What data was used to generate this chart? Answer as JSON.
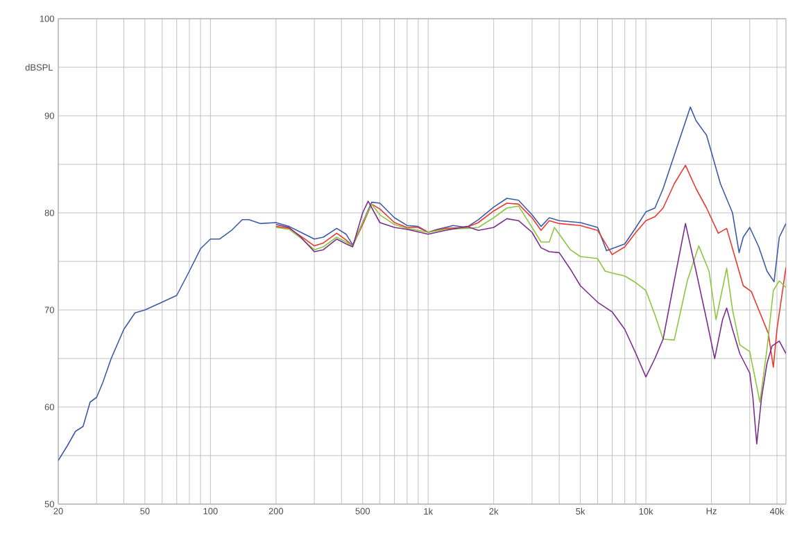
{
  "chart_data": {
    "type": "line",
    "ylabel": "dBSPL",
    "log": "x",
    "grid": true,
    "xlim": [
      20,
      44000
    ],
    "ylim": [
      50,
      100
    ],
    "xticks": [
      {
        "value": 20,
        "label": "20"
      },
      {
        "value": 30,
        "label": null
      },
      {
        "value": 40,
        "label": null
      },
      {
        "value": 50,
        "label": "50"
      },
      {
        "value": 60,
        "label": null
      },
      {
        "value": 70,
        "label": null
      },
      {
        "value": 80,
        "label": null
      },
      {
        "value": 90,
        "label": null
      },
      {
        "value": 100,
        "label": "100"
      },
      {
        "value": 200,
        "label": "200"
      },
      {
        "value": 300,
        "label": null
      },
      {
        "value": 400,
        "label": null
      },
      {
        "value": 500,
        "label": "500"
      },
      {
        "value": 600,
        "label": null
      },
      {
        "value": 700,
        "label": null
      },
      {
        "value": 800,
        "label": null
      },
      {
        "value": 900,
        "label": null
      },
      {
        "value": 1000,
        "label": "1k"
      },
      {
        "value": 2000,
        "label": "2k"
      },
      {
        "value": 3000,
        "label": null
      },
      {
        "value": 4000,
        "label": null
      },
      {
        "value": 5000,
        "label": "5k"
      },
      {
        "value": 6000,
        "label": null
      },
      {
        "value": 7000,
        "label": null
      },
      {
        "value": 8000,
        "label": null
      },
      {
        "value": 9000,
        "label": null
      },
      {
        "value": 10000,
        "label": "10k"
      },
      {
        "value": 20000,
        "label": "Hz"
      },
      {
        "value": 30000,
        "label": null
      },
      {
        "value": 40000,
        "label": "40k"
      }
    ],
    "yticks": [
      50,
      {
        "value": 55,
        "label": null
      },
      60,
      {
        "value": 65,
        "label": null
      },
      70,
      {
        "value": 75,
        "label": null
      },
      80,
      {
        "value": 85,
        "label": null
      },
      90,
      {
        "value": 95,
        "label": null
      },
      100
    ],
    "series": [
      {
        "color": "#3d5aa8",
        "x": [
          20,
          22,
          24,
          26,
          28,
          30,
          32,
          35,
          40,
          45,
          50,
          60,
          70,
          80,
          90,
          100,
          110,
          125,
          140,
          150,
          170,
          200,
          230,
          260,
          300,
          330,
          380,
          420,
          450,
          500,
          550,
          600,
          700,
          800,
          900,
          1000,
          1100,
          1200,
          1300,
          1500,
          1700,
          2000,
          2300,
          2600,
          3000,
          3300,
          3600,
          4000,
          5000,
          6000,
          6600,
          8000,
          9000,
          10000,
          11000,
          12000,
          14000,
          16000,
          17000,
          19000,
          22000,
          25000,
          26800,
          28000,
          30000,
          33000,
          36000,
          38800,
          41000,
          44000
        ],
        "values": [
          54.5,
          56,
          57.5,
          58,
          60.5,
          61,
          62.5,
          65,
          68,
          69.7,
          70,
          70.8,
          71.5,
          74,
          76.3,
          77.3,
          77.3,
          78.2,
          79.3,
          79.3,
          78.9,
          79,
          78.6,
          78,
          77.3,
          77.5,
          78.4,
          77.8,
          76.7,
          79,
          81.1,
          81,
          79.5,
          78.7,
          78.6,
          78,
          78.3,
          78.5,
          78.7,
          78.5,
          79.3,
          80.6,
          81.5,
          81.3,
          79.8,
          78.6,
          79.5,
          79.2,
          79,
          78.5,
          76.1,
          76.8,
          78.5,
          80.1,
          80.5,
          82.5,
          87,
          90.9,
          89.5,
          88,
          83,
          80,
          75.9,
          77.5,
          78.5,
          76.5,
          74,
          72.9,
          77.5,
          78.9
        ]
      },
      {
        "color": "#e8392f",
        "x": [
          200,
          230,
          260,
          300,
          330,
          380,
          420,
          450,
          500,
          550,
          600,
          700,
          800,
          900,
          1000,
          1200,
          1500,
          1700,
          2000,
          2300,
          2600,
          3000,
          3300,
          3600,
          4000,
          5000,
          6000,
          7000,
          8000,
          9000,
          10000,
          11000,
          12000,
          13500,
          15200,
          17000,
          19000,
          21500,
          23500,
          26000,
          28000,
          30500,
          33000,
          36500,
          38500,
          40000,
          44000
        ],
        "values": [
          78.6,
          78.4,
          77.6,
          76.6,
          76.9,
          77.9,
          77.2,
          76.6,
          78.8,
          80.9,
          80.4,
          79,
          78.5,
          78.5,
          78,
          78.4,
          78.5,
          79,
          80.2,
          81,
          80.9,
          79.5,
          78.2,
          79.2,
          78.9,
          78.7,
          78.2,
          75.7,
          76.5,
          78,
          79.2,
          79.6,
          80.5,
          83,
          84.9,
          82.5,
          80.5,
          77.9,
          78.4,
          75,
          72.5,
          71.9,
          70,
          67.6,
          64.1,
          68,
          74.4
        ]
      },
      {
        "color": "#8cc63f",
        "x": [
          200,
          230,
          260,
          300,
          330,
          380,
          420,
          450,
          500,
          550,
          600,
          700,
          800,
          1000,
          1200,
          1500,
          1700,
          2000,
          2300,
          2600,
          3000,
          3300,
          3600,
          3800,
          4500,
          5000,
          6000,
          6500,
          7000,
          8000,
          9000,
          10000,
          11000,
          12000,
          13500,
          15500,
          17500,
          19500,
          21000,
          23500,
          25000,
          27000,
          30000,
          33400,
          36000,
          38500,
          41000,
          44000
        ],
        "values": [
          78.5,
          78.3,
          77.4,
          76.2,
          76.5,
          77.5,
          77,
          76.6,
          79,
          80.9,
          79.8,
          78.8,
          78.4,
          78,
          78.3,
          78.4,
          78.5,
          79.5,
          80.5,
          80.7,
          78.5,
          77,
          77,
          78.5,
          76.2,
          75.5,
          75.3,
          74,
          73.8,
          73.5,
          72.8,
          72,
          69.5,
          67,
          66.9,
          73,
          76.6,
          74,
          69,
          74.3,
          70,
          66.4,
          65.7,
          60.5,
          66,
          72,
          73,
          72.3
        ]
      },
      {
        "color": "#7b2d8e",
        "x": [
          200,
          230,
          260,
          300,
          330,
          380,
          420,
          450,
          500,
          530,
          600,
          700,
          800,
          1000,
          1200,
          1500,
          1700,
          2000,
          2300,
          2600,
          3000,
          3300,
          3600,
          4000,
          4500,
          5000,
          6000,
          7000,
          8000,
          9000,
          10000,
          11000,
          12000,
          13500,
          15200,
          17000,
          19000,
          20700,
          22500,
          23500,
          25000,
          27000,
          30000,
          31000,
          32300,
          34000,
          36000,
          38000,
          41000,
          44000
        ],
        "values": [
          78.8,
          78.5,
          77.5,
          76,
          76.2,
          77.3,
          76.8,
          76.5,
          80,
          81.2,
          79,
          78.5,
          78.3,
          77.8,
          78.2,
          78.6,
          78.2,
          78.5,
          79.4,
          79.2,
          78,
          76.4,
          76,
          75.9,
          74.2,
          72.5,
          70.8,
          69.8,
          68,
          65.5,
          63.1,
          65,
          67,
          73,
          78.9,
          74,
          69,
          65,
          69,
          70.2,
          68,
          65.5,
          63.5,
          61,
          56.2,
          61,
          64.5,
          66.3,
          66.8,
          65.5
        ]
      }
    ]
  }
}
